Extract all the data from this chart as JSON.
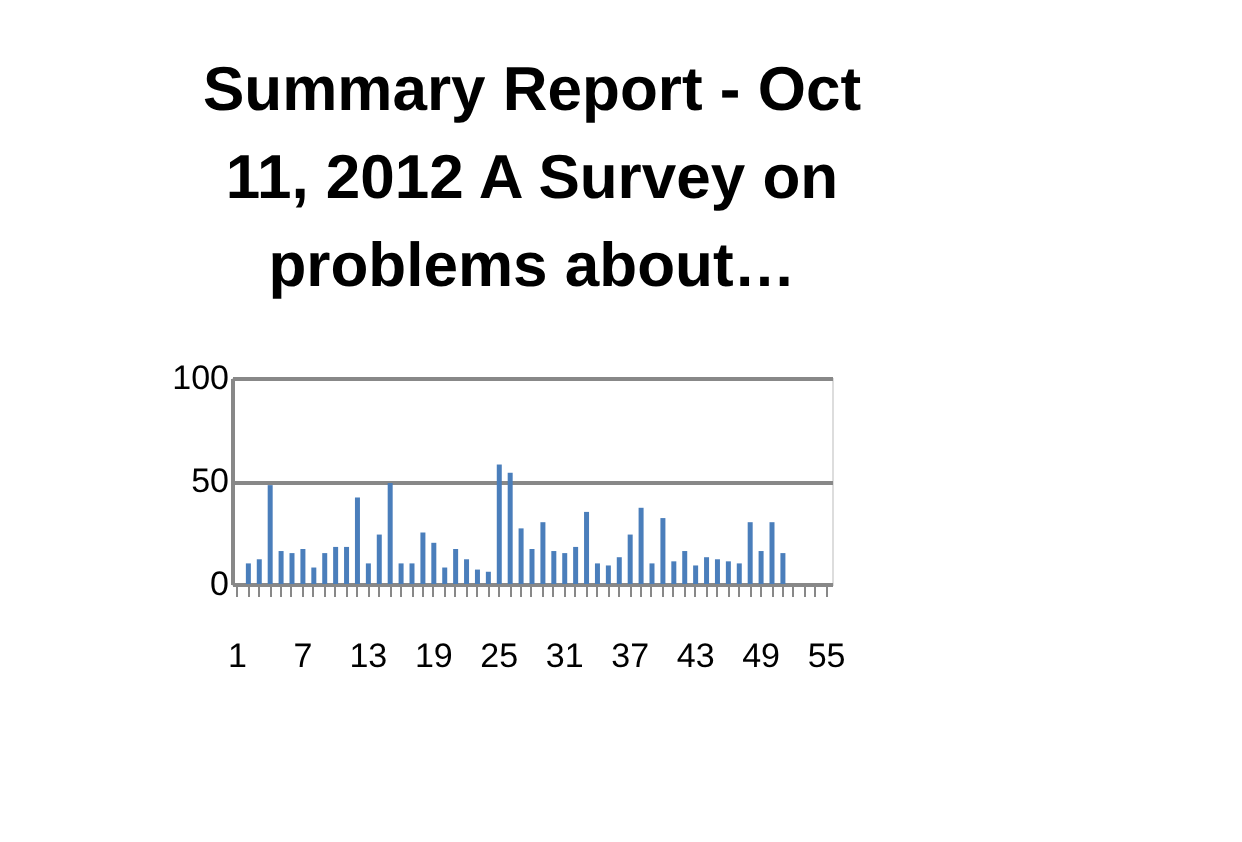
{
  "chart_data": {
    "type": "bar",
    "title": "Summary Report - Oct 11, 2012 A Survey on problems about…",
    "categories": [
      "1",
      null,
      null,
      null,
      null,
      null,
      "7",
      null,
      null,
      null,
      null,
      null,
      "13",
      null,
      null,
      null,
      null,
      null,
      "19",
      null,
      null,
      null,
      null,
      null,
      "25",
      null,
      null,
      null,
      null,
      null,
      "31",
      null,
      null,
      null,
      null,
      null,
      "37",
      null,
      null,
      null,
      null,
      null,
      "43",
      null,
      null,
      null,
      null,
      null,
      "49",
      null,
      null,
      null,
      null,
      null,
      "55"
    ],
    "values": [
      null,
      10,
      12,
      48,
      16,
      15,
      17,
      8,
      15,
      18,
      18,
      42,
      10,
      24,
      49,
      10,
      10,
      25,
      20,
      8,
      17,
      12,
      7,
      6,
      58,
      54,
      27,
      17,
      30,
      16,
      15,
      18,
      35,
      10,
      9,
      13,
      24,
      37,
      10,
      32,
      11,
      16,
      9,
      13,
      12,
      11,
      10,
      30,
      16,
      30,
      15,
      null,
      null,
      null,
      null
    ],
    "color": "#4a7ebb",
    "ylim": [
      0,
      100
    ],
    "yticks": [
      0,
      50,
      100
    ],
    "grid": "y"
  }
}
